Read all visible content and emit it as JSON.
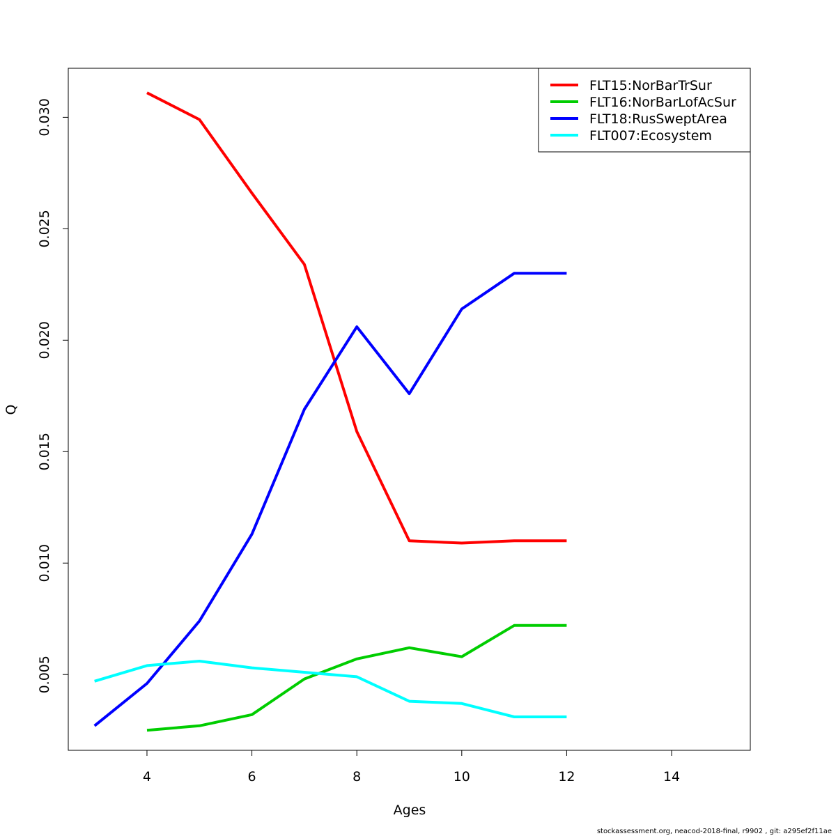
{
  "chart_data": {
    "type": "line",
    "xlabel": "Ages",
    "ylabel": "Q",
    "xlim": [
      2.5,
      15.5
    ],
    "ylim": [
      0.0016,
      0.0322
    ],
    "xticks": [
      "4",
      "6",
      "8",
      "10",
      "12",
      "14"
    ],
    "yticks": [
      "0.005",
      "0.010",
      "0.015",
      "0.020",
      "0.025",
      "0.030"
    ],
    "legend_position": "top-right",
    "series": [
      {
        "name": "FLT15:NorBarTrSur",
        "color": "#ff0000",
        "x": [
          4,
          5,
          6,
          7,
          8,
          9,
          10,
          11,
          12
        ],
        "y": [
          0.0311,
          0.0299,
          0.0266,
          0.0234,
          0.0159,
          0.011,
          0.0109,
          0.011,
          0.011
        ]
      },
      {
        "name": "FLT16:NorBarLofAcSur",
        "color": "#00cd00",
        "x": [
          4,
          5,
          6,
          7,
          8,
          9,
          10,
          11,
          12
        ],
        "y": [
          0.0025,
          0.0027,
          0.0032,
          0.0048,
          0.0057,
          0.0062,
          0.0058,
          0.0072,
          0.0072
        ]
      },
      {
        "name": "FLT18:RusSweptArea",
        "color": "#0000ff",
        "x": [
          3,
          4,
          5,
          6,
          7,
          8,
          9,
          10,
          11,
          12
        ],
        "y": [
          0.0027,
          0.0046,
          0.0074,
          0.0113,
          0.0169,
          0.0206,
          0.0176,
          0.0214,
          0.023,
          0.023
        ]
      },
      {
        "name": "FLT007:Ecosystem",
        "color": "#00ffff",
        "x": [
          3,
          4,
          5,
          6,
          7,
          8,
          9,
          10,
          11,
          12
        ],
        "y": [
          0.0047,
          0.0054,
          0.0056,
          0.0053,
          0.0051,
          0.0049,
          0.0038,
          0.0037,
          0.0031,
          0.0031
        ]
      }
    ]
  },
  "footer": "stockassessment.org, neacod-2018-final, r9902 , git: a295ef2f11ae"
}
